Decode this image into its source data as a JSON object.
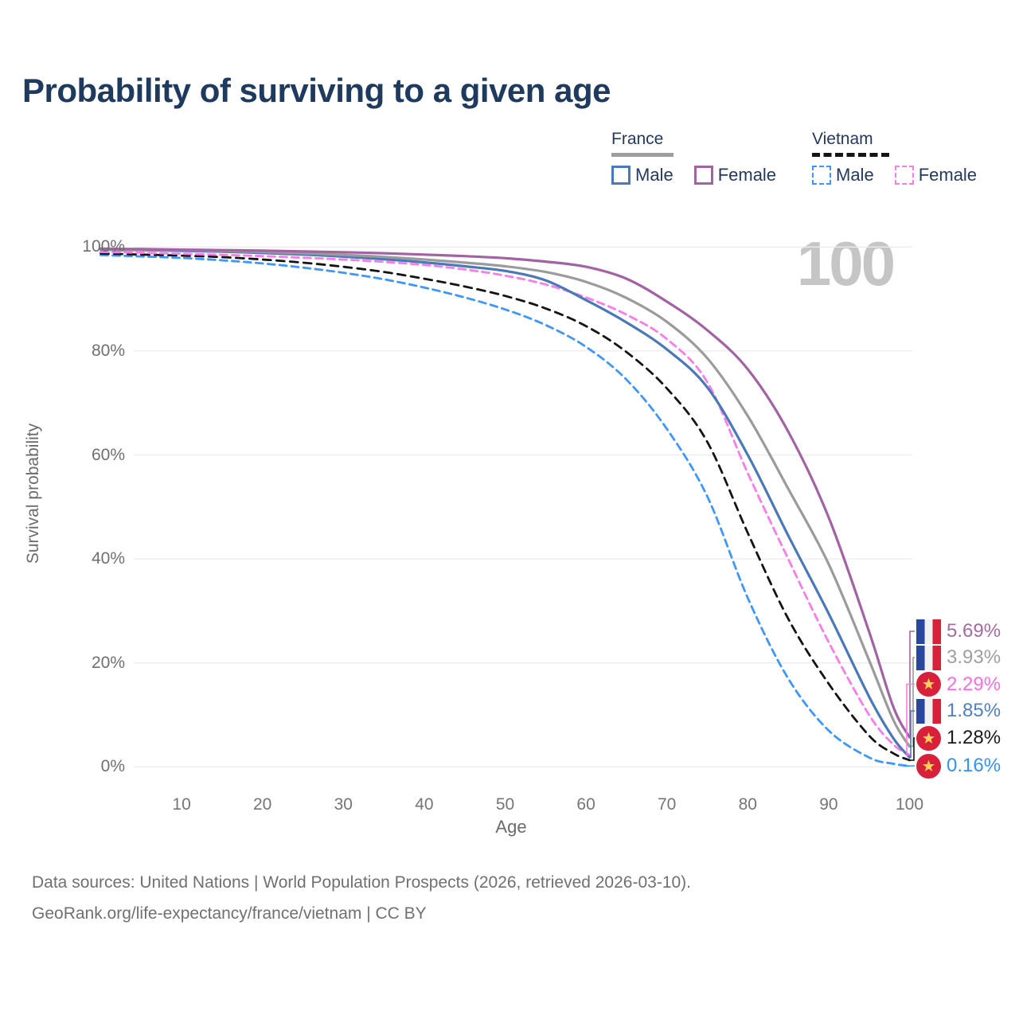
{
  "title": "Probability of surviving to a given age",
  "legend": {
    "france": {
      "label": "France",
      "male": "Male",
      "female": "Female"
    },
    "vietnam": {
      "label": "Vietnam",
      "male": "Male",
      "female": "Female"
    }
  },
  "age_marker": "100",
  "axes": {
    "y_title": "Survival probability",
    "x_title": "Age",
    "y_ticks": [
      {
        "label": "100%",
        "pct": 100
      },
      {
        "label": "80%",
        "pct": 80
      },
      {
        "label": "60%",
        "pct": 60
      },
      {
        "label": "40%",
        "pct": 40
      },
      {
        "label": "20%",
        "pct": 20
      },
      {
        "label": "0%",
        "pct": 0
      }
    ],
    "x_ticks": [
      {
        "label": "10",
        "age": 10
      },
      {
        "label": "20",
        "age": 20
      },
      {
        "label": "30",
        "age": 30
      },
      {
        "label": "40",
        "age": 40
      },
      {
        "label": "50",
        "age": 50
      },
      {
        "label": "60",
        "age": 60
      },
      {
        "label": "70",
        "age": 70
      },
      {
        "label": "80",
        "age": 80
      },
      {
        "label": "90",
        "age": 90
      },
      {
        "label": "100",
        "age": 100
      }
    ]
  },
  "colors": {
    "grid": "#ececec",
    "france_male": "#4a79ba",
    "france_female": "#a362a3",
    "france_total": "#9b9b9b",
    "vietnam_male": "#3d97ff",
    "vietnam_female": "#fb7be8",
    "vietnam_total": "#141414"
  },
  "end_labels": [
    {
      "series": "France Female",
      "flag": "france",
      "value": "5.69%",
      "text_color": "#a46ba0"
    },
    {
      "series": "France Total",
      "flag": "france",
      "value": "3.93%",
      "text_color": "#9f9f9f"
    },
    {
      "series": "Vietnam Female",
      "flag": "vietnam",
      "value": "2.29%",
      "text_color": "#fb6be4"
    },
    {
      "series": "France Male",
      "flag": "france",
      "value": "1.85%",
      "text_color": "#5180c2"
    },
    {
      "series": "Vietnam Total",
      "flag": "vietnam",
      "value": "1.28%",
      "text_color": "#1a1a1a"
    },
    {
      "series": "Vietnam Male",
      "flag": "vietnam",
      "value": "0.16%",
      "text_color": "#2f93ff"
    }
  ],
  "footer": {
    "line1": "Data sources: United Nations | World Population Prospects (2026, retrieved 2026-03-10).",
    "line2": "GeoRank.org/life-expectancy/france/vietnam | CC BY"
  },
  "chart_data": {
    "type": "line",
    "title": "Probability of surviving to a given age",
    "xlabel": "Age",
    "ylabel": "Survival probability",
    "xlim": [
      0,
      100
    ],
    "ylim": [
      0,
      100
    ],
    "grid": "horizontal",
    "legend_position": "top-right",
    "series": [
      {
        "name": "Vietnam Male",
        "color": "#3d97ff",
        "dash": "dashed",
        "end_value_pct": 0.16,
        "points": [
          [
            0,
            98.45
          ],
          [
            5,
            98.2
          ],
          [
            10,
            97.9
          ],
          [
            15,
            97.45
          ],
          [
            20,
            96.85
          ],
          [
            25,
            96.05
          ],
          [
            30,
            95.05
          ],
          [
            35,
            93.8
          ],
          [
            40,
            92.2
          ],
          [
            45,
            90.3
          ],
          [
            50,
            88.0
          ],
          [
            55,
            85.0
          ],
          [
            60,
            80.8
          ],
          [
            65,
            74.5
          ],
          [
            70,
            65.0
          ],
          [
            75,
            52.0
          ],
          [
            80,
            32.5
          ],
          [
            85,
            17.0
          ],
          [
            90,
            7.0
          ],
          [
            95,
            1.8
          ],
          [
            98,
            0.6
          ],
          [
            100,
            0.16
          ]
        ]
      },
      {
        "name": "Vietnam Total",
        "color": "#141414",
        "dash": "dashed",
        "end_value_pct": 1.28,
        "points": [
          [
            0,
            98.75
          ],
          [
            5,
            98.55
          ],
          [
            10,
            98.35
          ],
          [
            15,
            98.05
          ],
          [
            20,
            97.6
          ],
          [
            25,
            97.0
          ],
          [
            30,
            96.2
          ],
          [
            35,
            95.2
          ],
          [
            40,
            93.9
          ],
          [
            45,
            92.4
          ],
          [
            50,
            90.6
          ],
          [
            55,
            88.2
          ],
          [
            60,
            84.8
          ],
          [
            65,
            79.8
          ],
          [
            70,
            72.8
          ],
          [
            75,
            62.5
          ],
          [
            80,
            45.0
          ],
          [
            85,
            28.5
          ],
          [
            90,
            16.0
          ],
          [
            95,
            6.0
          ],
          [
            98,
            2.6
          ],
          [
            100,
            1.28
          ]
        ]
      },
      {
        "name": "Vietnam Female",
        "color": "#fb7be8",
        "dash": "dashed",
        "end_value_pct": 2.29,
        "points": [
          [
            0,
            99.05
          ],
          [
            5,
            98.9
          ],
          [
            10,
            98.7
          ],
          [
            15,
            98.5
          ],
          [
            20,
            98.25
          ],
          [
            25,
            97.95
          ],
          [
            30,
            97.6
          ],
          [
            35,
            97.15
          ],
          [
            40,
            96.55
          ],
          [
            45,
            95.7
          ],
          [
            50,
            94.5
          ],
          [
            55,
            92.8
          ],
          [
            60,
            90.3
          ],
          [
            65,
            87.0
          ],
          [
            70,
            82.3
          ],
          [
            75,
            74.0
          ],
          [
            80,
            56.5
          ],
          [
            85,
            40.0
          ],
          [
            90,
            24.0
          ],
          [
            95,
            10.0
          ],
          [
            98,
            4.3
          ],
          [
            100,
            2.29
          ]
        ]
      },
      {
        "name": "France Male",
        "color": "#4a79ba",
        "dash": "solid",
        "end_value_pct": 1.85,
        "points": [
          [
            0,
            99.5
          ],
          [
            5,
            99.4
          ],
          [
            10,
            99.25
          ],
          [
            15,
            99.1
          ],
          [
            20,
            98.85
          ],
          [
            25,
            98.55
          ],
          [
            30,
            98.15
          ],
          [
            35,
            97.65
          ],
          [
            40,
            97.05
          ],
          [
            45,
            96.3
          ],
          [
            50,
            95.4
          ],
          [
            55,
            93.6
          ],
          [
            60,
            89.8
          ],
          [
            65,
            85.5
          ],
          [
            70,
            80.3
          ],
          [
            75,
            73.0
          ],
          [
            80,
            60.0
          ],
          [
            85,
            44.5
          ],
          [
            90,
            29.5
          ],
          [
            95,
            13.5
          ],
          [
            98,
            5.5
          ],
          [
            100,
            1.85
          ]
        ]
      },
      {
        "name": "France Total",
        "color": "#9b9b9b",
        "dash": "solid",
        "end_value_pct": 3.93,
        "points": [
          [
            0,
            99.6
          ],
          [
            5,
            99.5
          ],
          [
            10,
            99.4
          ],
          [
            15,
            99.25
          ],
          [
            20,
            99.05
          ],
          [
            25,
            98.8
          ],
          [
            30,
            98.5
          ],
          [
            35,
            98.1
          ],
          [
            40,
            97.6
          ],
          [
            45,
            97.0
          ],
          [
            50,
            96.3
          ],
          [
            55,
            95.2
          ],
          [
            60,
            93.3
          ],
          [
            65,
            90.2
          ],
          [
            70,
            85.6
          ],
          [
            75,
            78.6
          ],
          [
            80,
            67.5
          ],
          [
            85,
            53.5
          ],
          [
            90,
            39.0
          ],
          [
            95,
            20.5
          ],
          [
            98,
            9.0
          ],
          [
            100,
            3.93
          ]
        ]
      },
      {
        "name": "France Female",
        "color": "#a362a3",
        "dash": "solid",
        "end_value_pct": 5.69,
        "points": [
          [
            0,
            99.7
          ],
          [
            5,
            99.6
          ],
          [
            10,
            99.5
          ],
          [
            15,
            99.4
          ],
          [
            20,
            99.3
          ],
          [
            25,
            99.15
          ],
          [
            30,
            99.0
          ],
          [
            35,
            98.8
          ],
          [
            40,
            98.55
          ],
          [
            45,
            98.25
          ],
          [
            50,
            97.85
          ],
          [
            55,
            97.2
          ],
          [
            60,
            96.2
          ],
          [
            65,
            93.9
          ],
          [
            70,
            89.5
          ],
          [
            75,
            84.0
          ],
          [
            80,
            76.5
          ],
          [
            85,
            64.5
          ],
          [
            90,
            48.0
          ],
          [
            95,
            26.0
          ],
          [
            98,
            11.5
          ],
          [
            100,
            5.69
          ]
        ]
      }
    ]
  }
}
